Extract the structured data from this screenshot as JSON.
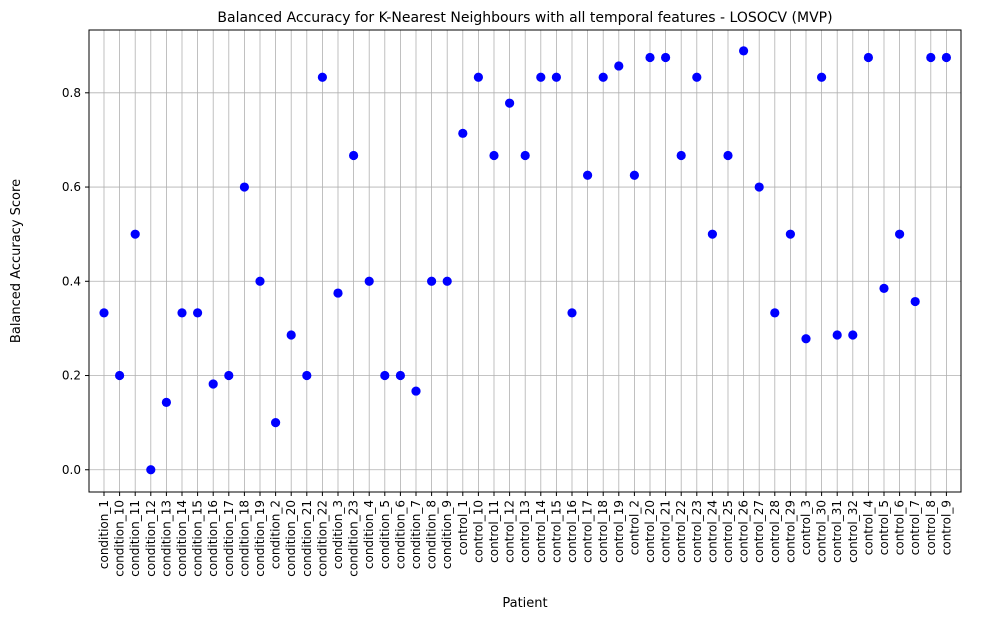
{
  "chart_data": {
    "type": "scatter",
    "title": "Balanced Accuracy for K-Nearest Neighbours with all temporal features - LOSOCV (MVP)",
    "xlabel": "Patient",
    "ylabel": "Balanced Accuracy Score",
    "ylim": [
      -0.0472,
      0.9333
    ],
    "yticks": [
      "0.0",
      "0.2",
      "0.4",
      "0.6",
      "0.8"
    ],
    "grid": true,
    "marker_color": "#0000ff",
    "categories": [
      "condition_1",
      "condition_10",
      "condition_11",
      "condition_12",
      "condition_13",
      "condition_14",
      "condition_15",
      "condition_16",
      "condition_17",
      "condition_18",
      "condition_19",
      "condition_2",
      "condition_20",
      "condition_21",
      "condition_22",
      "condition_3",
      "condition_23",
      "condition_4",
      "condition_5",
      "condition_6",
      "condition_7",
      "condition_8",
      "condition_9",
      "control_1",
      "control_10",
      "control_11",
      "control_12",
      "control_13",
      "control_14",
      "control_15",
      "control_16",
      "control_17",
      "control_18",
      "control_19",
      "control_2",
      "control_20",
      "control_21",
      "control_22",
      "control_23",
      "control_24",
      "control_25",
      "control_26",
      "control_27",
      "control_28",
      "control_29",
      "control_3",
      "control_30",
      "control_31",
      "control_32",
      "control_4",
      "control_5",
      "control_6",
      "control_7",
      "control_8",
      "control_9"
    ],
    "values": [
      0.333,
      0.2,
      0.5,
      0.0,
      0.143,
      0.333,
      0.333,
      0.182,
      0.2,
      0.6,
      0.4,
      0.1,
      0.286,
      0.2,
      0.833,
      0.375,
      0.667,
      0.4,
      0.2,
      0.2,
      0.167,
      0.4,
      0.4,
      0.714,
      0.833,
      0.667,
      0.778,
      0.667,
      0.833,
      0.833,
      0.333,
      0.625,
      0.833,
      0.857,
      0.625,
      0.875,
      0.875,
      0.667,
      0.833,
      0.5,
      0.667,
      0.889,
      0.6,
      0.333,
      0.5,
      0.278,
      0.833,
      0.286,
      0.286,
      0.875,
      0.385,
      0.5,
      0.357,
      0.875,
      0.875
    ]
  }
}
